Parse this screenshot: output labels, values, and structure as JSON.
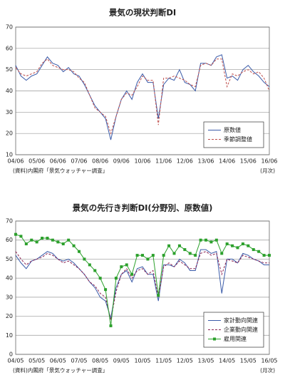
{
  "chart_data": [
    {
      "type": "line",
      "title": "景気の現状判断DI",
      "categories": [
        "04/06",
        null,
        null,
        null,
        "05/06",
        null,
        null,
        null,
        "06/06",
        null,
        null,
        null,
        "07/06",
        null,
        null,
        null,
        "08/06",
        null,
        null,
        null,
        "09/06",
        null,
        null,
        null,
        "10/06",
        null,
        null,
        null,
        "11/06",
        null,
        null,
        null,
        "12/06",
        null,
        null,
        null,
        "13/06",
        null,
        null,
        null,
        "14/06",
        null,
        null,
        null,
        "15/06",
        null,
        null,
        null,
        "16/06"
      ],
      "series": [
        {
          "name": "原数値",
          "color": "#3a5ba9",
          "style": "solid",
          "values": [
            52,
            47,
            45,
            47,
            48,
            52,
            56,
            53,
            52,
            49,
            51,
            48,
            47,
            43,
            38,
            33,
            30,
            27,
            17,
            28,
            36,
            40,
            36,
            44,
            48,
            44,
            44,
            27,
            43,
            46,
            45,
            50,
            44,
            43,
            40,
            53,
            53,
            52,
            56,
            57,
            46,
            47,
            45,
            50,
            52,
            49,
            47,
            44,
            42
          ]
        },
        {
          "name": "季節調整値",
          "color": "#c0504d",
          "style": "dashed",
          "values": [
            51,
            48,
            47,
            48,
            49,
            53,
            55,
            52,
            51,
            50,
            50,
            49,
            46,
            44,
            38,
            32,
            30,
            28,
            20,
            28,
            36,
            39,
            38,
            42,
            47,
            45,
            45,
            24,
            46,
            46,
            47,
            46,
            45,
            43,
            42,
            52,
            53,
            52,
            55,
            55,
            42,
            48,
            47,
            49,
            50,
            48,
            49,
            46,
            40
          ]
        }
      ],
      "ylim": [
        10,
        70
      ],
      "yticks": [
        10,
        20,
        30,
        40,
        50,
        60,
        70
      ],
      "grid": true,
      "legend": "lower right",
      "source": "(資料)内閣府「景気ウォッチャー調査」",
      "unit_note": "(月次)"
    },
    {
      "type": "line",
      "title": "景気の先行き判断DI(分野別、原数値)",
      "categories": [
        "04/05",
        null,
        null,
        null,
        "05/05",
        null,
        null,
        null,
        "06/05",
        null,
        null,
        null,
        "07/05",
        null,
        null,
        null,
        "08/05",
        null,
        null,
        null,
        "09/05",
        null,
        null,
        null,
        "10/05",
        null,
        null,
        null,
        "11/05",
        null,
        null,
        null,
        "12/05",
        null,
        null,
        null,
        "13/05",
        null,
        null,
        null,
        "14/05",
        null,
        null,
        null,
        "15/05",
        null,
        null,
        null,
        "16/05"
      ],
      "series": [
        {
          "name": "家計動向関連",
          "color": "#3a5ba9",
          "style": "solid",
          "values": [
            52,
            48,
            45,
            49,
            50,
            52,
            54,
            53,
            50,
            49,
            50,
            48,
            45,
            42,
            38,
            35,
            30,
            28,
            19,
            35,
            42,
            44,
            38,
            45,
            46,
            42,
            42,
            28,
            47,
            47,
            46,
            50,
            48,
            44,
            44,
            55,
            55,
            53,
            54,
            32,
            50,
            50,
            48,
            53,
            52,
            50,
            49,
            47,
            47
          ]
        },
        {
          "name": "企業動向関連",
          "color": "#8b2252",
          "style": "dashed",
          "values": [
            54,
            50,
            47,
            49,
            50,
            51,
            53,
            52,
            50,
            48,
            49,
            47,
            45,
            42,
            38,
            36,
            32,
            30,
            18,
            33,
            42,
            45,
            40,
            44,
            45,
            42,
            44,
            30,
            46,
            48,
            46,
            49,
            47,
            45,
            45,
            53,
            54,
            52,
            53,
            42,
            50,
            49,
            48,
            52,
            51,
            50,
            49,
            48,
            48
          ]
        },
        {
          "name": "雇用関連",
          "color": "#2ca02c",
          "style": "solid",
          "marker": "square",
          "values": [
            63,
            62,
            58,
            60,
            59,
            61,
            61,
            60,
            59,
            58,
            60,
            57,
            54,
            50,
            47,
            44,
            40,
            34,
            15,
            40,
            46,
            47,
            42,
            52,
            52,
            50,
            52,
            31,
            52,
            57,
            53,
            57,
            55,
            53,
            52,
            60,
            60,
            59,
            60,
            53,
            58,
            57,
            56,
            58,
            57,
            55,
            54,
            52,
            52
          ]
        }
      ],
      "ylim": [
        0,
        70
      ],
      "yticks": [
        0,
        10,
        20,
        30,
        40,
        50,
        60,
        70
      ],
      "grid": true,
      "legend": "lower right",
      "source": "(資料)内閣府「景気ウォッチャー調査」",
      "unit_note": "(月次)"
    }
  ]
}
